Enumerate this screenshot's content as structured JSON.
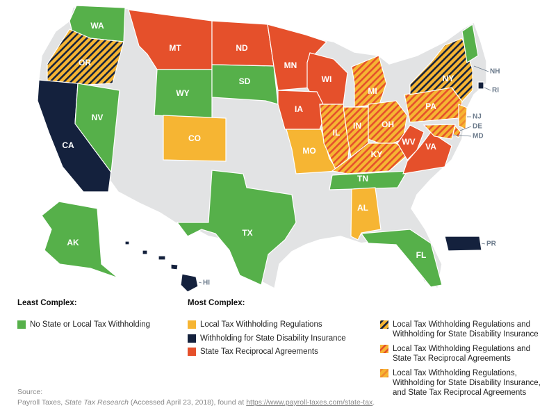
{
  "legend": {
    "least_title": "Least Complex:",
    "most_title": "Most Complex:",
    "items": [
      {
        "lines": [
          "No State or Local Tax Withholding"
        ],
        "color": "#56b04a"
      },
      {
        "lines": [
          "Local Tax Withholding Regulations"
        ],
        "color": "#f6b533"
      },
      {
        "lines": [
          "Withholding for State Disability Insurance"
        ],
        "color": "#14213d"
      },
      {
        "lines": [
          "State Tax Reciprocal Agreements"
        ],
        "color": "#e5502b"
      },
      {
        "lines": [
          "Local Tax Withholding Regulations and",
          "Withholding for State Disability Insurance"
        ],
        "color": "#f6b533",
        "stripe": "#14213d"
      },
      {
        "lines": [
          "Local Tax Withholding Regulations and",
          "State Tax Reciprocal Agreements"
        ],
        "color": "#f6b533",
        "stripe": "#e5502b"
      },
      {
        "lines": [
          "Local Tax Withholding Regulations,",
          "Withholding for State Disability Insurance,",
          "and State Tax Reciprocal Agreements"
        ],
        "color": "#f6b533",
        "stripe": "#f08a2e"
      }
    ]
  },
  "states": [
    {
      "label": "WA",
      "category": 0
    },
    {
      "label": "OR",
      "category": 4
    },
    {
      "label": "CA",
      "category": 2
    },
    {
      "label": "NV",
      "category": 0
    },
    {
      "label": "MT",
      "category": 3
    },
    {
      "label": "WY",
      "category": 0
    },
    {
      "label": "ND",
      "category": 3
    },
    {
      "label": "SD",
      "category": 0
    },
    {
      "label": "MN",
      "category": 3
    },
    {
      "label": "WI",
      "category": 3
    },
    {
      "label": "IA",
      "category": 3
    },
    {
      "label": "CO",
      "category": 1
    },
    {
      "label": "MO",
      "category": 1
    },
    {
      "label": "IL",
      "category": 5
    },
    {
      "label": "IN",
      "category": 5
    },
    {
      "label": "MI",
      "category": 5
    },
    {
      "label": "OH",
      "category": 5
    },
    {
      "label": "KY",
      "category": 5
    },
    {
      "label": "TN",
      "category": 0
    },
    {
      "label": "WV",
      "category": 3
    },
    {
      "label": "VA",
      "category": 3
    },
    {
      "label": "PA",
      "category": 5
    },
    {
      "label": "NY",
      "category": 4
    },
    {
      "label": "NJ",
      "category": 6
    },
    {
      "label": "DE",
      "category": 5
    },
    {
      "label": "MD",
      "category": 5
    },
    {
      "label": "NH",
      "category": 0
    },
    {
      "label": "RI",
      "category": 2
    },
    {
      "label": "AL",
      "category": 1
    },
    {
      "label": "FL",
      "category": 0
    },
    {
      "label": "TX",
      "category": 0
    },
    {
      "label": "AK",
      "category": 0
    },
    {
      "label": "HI",
      "category": 2
    },
    {
      "label": "PR",
      "category": 2
    }
  ],
  "source": {
    "heading": "Source:",
    "prefix": "Payroll Taxes, ",
    "title": "State Tax Research",
    "middle": " (Accessed April 23, 2018), found at ",
    "url": "https://www.payroll-taxes.com/state-tax",
    "suffix": "."
  }
}
